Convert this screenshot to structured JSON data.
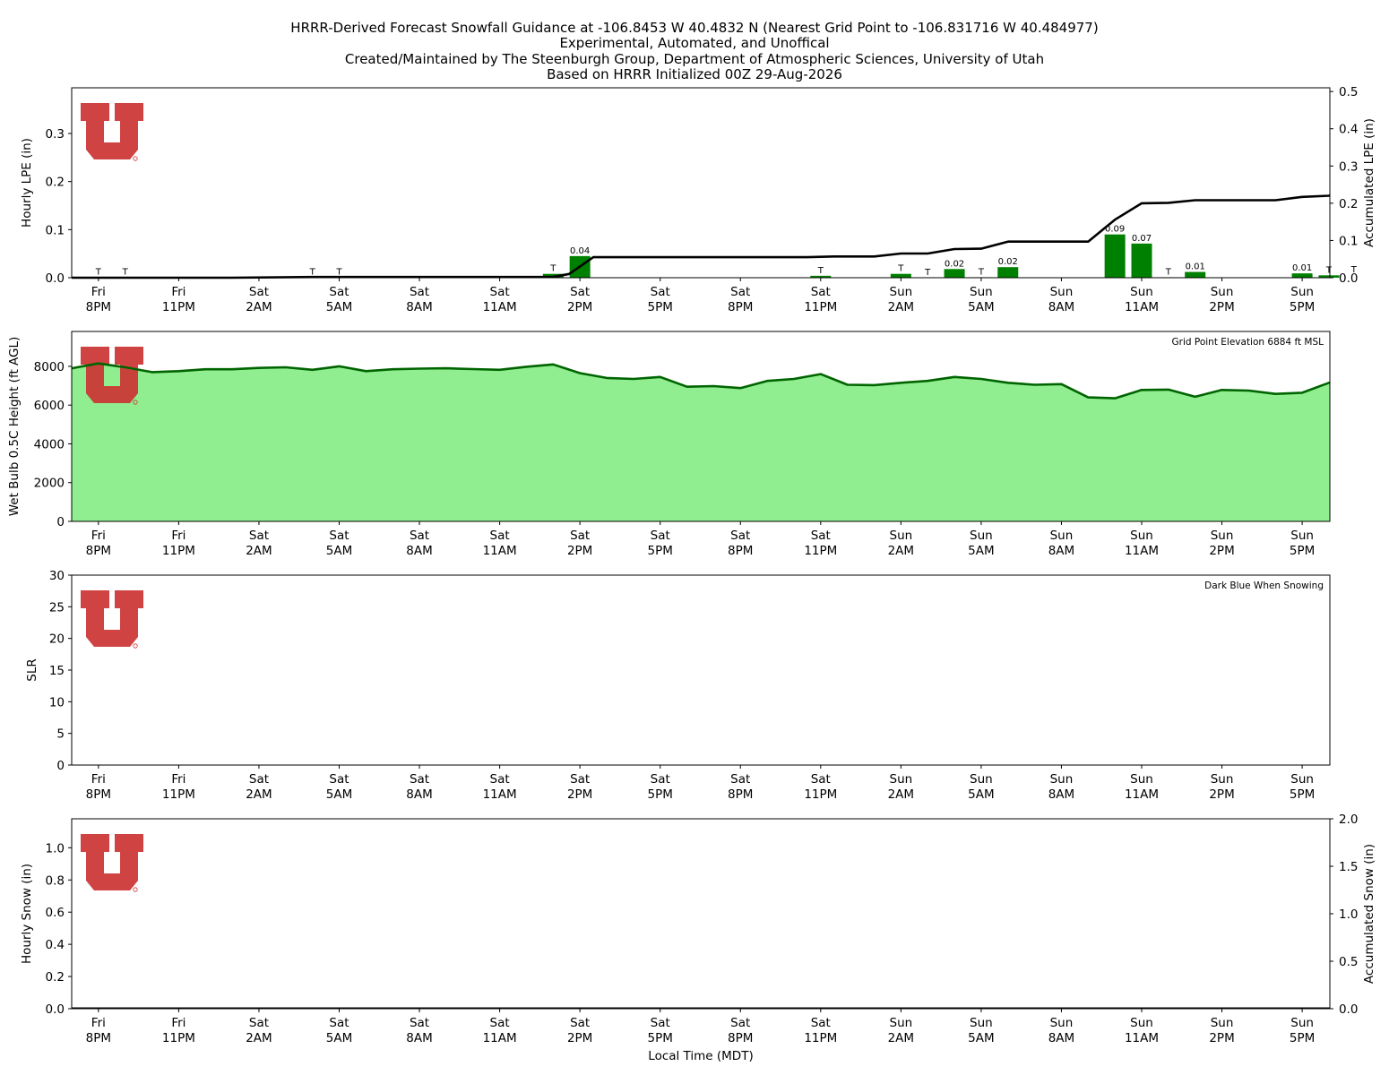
{
  "title_lines": [
    "HRRR-Derived Forecast Snowfall Guidance at -106.8453 W 40.4832 N (Nearest Grid Point to -106.831716 W 40.484977)",
    "Experimental, Automated, and Unoffical",
    "Created/Maintained by The Steenburgh Group, Department of Atmospheric Sciences, University of Utah",
    "Based on HRRR Initialized 00Z 29-Aug-2026"
  ],
  "time_ticks": [
    {
      "day": "Fri",
      "time": "8PM"
    },
    {
      "day": "Fri",
      "time": "11PM"
    },
    {
      "day": "Sat",
      "time": "2AM"
    },
    {
      "day": "Sat",
      "time": "5AM"
    },
    {
      "day": "Sat",
      "time": "8AM"
    },
    {
      "day": "Sat",
      "time": "11AM"
    },
    {
      "day": "Sat",
      "time": "2PM"
    },
    {
      "day": "Sat",
      "time": "5PM"
    },
    {
      "day": "Sat",
      "time": "8PM"
    },
    {
      "day": "Sat",
      "time": "11PM"
    },
    {
      "day": "Sun",
      "time": "2AM"
    },
    {
      "day": "Sun",
      "time": "5AM"
    },
    {
      "day": "Sun",
      "time": "8AM"
    },
    {
      "day": "Sun",
      "time": "11AM"
    },
    {
      "day": "Sun",
      "time": "2PM"
    },
    {
      "day": "Sun",
      "time": "5PM"
    }
  ],
  "xlabel": "Local Time (MDT)",
  "logo_color": "#cc3333",
  "chart_data": [
    {
      "type": "bar",
      "ylabel": "Hourly LPE (in)",
      "y2label": "Accumulated LPE (in)",
      "ylim": [
        0,
        0.395
      ],
      "y2lim": [
        0,
        0.51
      ],
      "yticks": [
        "0.0",
        "0.1",
        "0.2",
        "0.3"
      ],
      "y2ticks": [
        "0.0",
        "0.1",
        "0.2",
        "0.3",
        "0.4",
        "0.5"
      ],
      "x_hours": [
        0,
        1,
        2,
        3,
        4,
        5,
        6,
        7,
        8,
        9,
        10,
        11,
        12,
        13,
        14,
        15,
        16,
        17,
        18,
        19,
        20,
        21,
        22,
        23,
        24,
        25,
        26,
        27,
        28,
        29,
        30,
        31,
        32,
        33,
        34,
        35,
        36,
        37,
        38,
        39,
        40,
        41,
        42,
        43,
        44,
        45,
        46,
        47
      ],
      "hourly_lpe": [
        0,
        0.001,
        0.001,
        0,
        0,
        0,
        0,
        0,
        0,
        0.001,
        0.001,
        0,
        0,
        0,
        0,
        0,
        0,
        0,
        0.008,
        0.045,
        0,
        0,
        0,
        0,
        0,
        0,
        0,
        0,
        0.004,
        0,
        0,
        0.008,
        0,
        0.018,
        0.001,
        0.022,
        0,
        0,
        0,
        0.09,
        0.071,
        0.001,
        0.012,
        0,
        0,
        0,
        0.009,
        0.005
      ],
      "bar_labels": [
        "",
        "T",
        "T",
        "",
        "",
        "",
        "",
        "",
        "",
        "T",
        "T",
        "",
        "",
        "",
        "",
        "",
        "",
        "",
        "T",
        "0.04",
        "",
        "",
        "",
        "",
        "",
        "",
        "",
        "",
        "T",
        "",
        "",
        "T",
        "T",
        "0.02",
        "T",
        "0.02",
        "",
        "",
        "",
        "0.09",
        "0.07",
        "T",
        "0.01",
        "",
        "",
        "",
        "0.01",
        "T"
      ],
      "bar_color": "#008000",
      "trailing_label": "T",
      "accum_x": [
        0,
        3,
        6,
        9,
        12,
        15,
        18,
        18.6,
        19.5,
        20,
        21,
        24,
        27,
        27.5,
        28.5,
        30,
        31,
        32,
        33,
        34,
        35,
        36,
        37,
        38,
        39,
        40,
        41,
        42,
        43,
        44,
        45,
        46,
        47,
        47.4
      ],
      "accum_lpe": [
        0,
        0,
        0,
        0.002,
        0.002,
        0.002,
        0.002,
        0.01,
        0.055,
        0.055,
        0.055,
        0.055,
        0.055,
        0.055,
        0.057,
        0.057,
        0.065,
        0.065,
        0.077,
        0.078,
        0.097,
        0.097,
        0.097,
        0.097,
        0.156,
        0.2,
        0.201,
        0.208,
        0.208,
        0.208,
        0.208,
        0.217,
        0.22,
        0.221
      ],
      "line_color": "#000000"
    },
    {
      "type": "area",
      "ylabel": "Wet Bulb 0.5C Height (ft AGL)",
      "ylim": [
        0,
        9800
      ],
      "yticks": [
        "0",
        "2000",
        "4000",
        "6000",
        "8000"
      ],
      "annotation": "Grid Point Elevation 6884 ft MSL",
      "x_hours": [
        0,
        1,
        2,
        3,
        4,
        5,
        6,
        7,
        8,
        9,
        10,
        11,
        12,
        13,
        14,
        15,
        16,
        17,
        18,
        19,
        20,
        21,
        22,
        23,
        24,
        25,
        26,
        27,
        28,
        29,
        30,
        31,
        32,
        33,
        34,
        35,
        36,
        37,
        38,
        39,
        40,
        41,
        42,
        43,
        44,
        45,
        46,
        47
      ],
      "values": [
        7900,
        8150,
        7950,
        7700,
        7750,
        7850,
        7850,
        7920,
        7950,
        7820,
        8000,
        7750,
        7850,
        7880,
        7900,
        7860,
        7820,
        7980,
        8100,
        7650,
        7400,
        7350,
        7450,
        6950,
        6980,
        6880,
        7250,
        7350,
        7600,
        7050,
        7030,
        7150,
        7250,
        7450,
        7350,
        7150,
        7050,
        7080,
        6400,
        6350,
        6780,
        6800,
        6430,
        6780,
        6750,
        6580,
        6640,
        7150
      ],
      "fill_color": "#90ee90",
      "line_color": "#006400"
    },
    {
      "type": "bar",
      "ylabel": "SLR",
      "ylim": [
        0,
        30
      ],
      "yticks": [
        "0",
        "5",
        "10",
        "15",
        "20",
        "25",
        "30"
      ],
      "annotation": "Dark Blue When Snowing",
      "values": []
    },
    {
      "type": "bar",
      "ylabel": "Hourly Snow (in)",
      "y2label": "Accumulated Snow (in)",
      "ylim": [
        0,
        1.18
      ],
      "y2lim": [
        0,
        2.0
      ],
      "yticks": [
        "0.0",
        "0.2",
        "0.4",
        "0.6",
        "0.8",
        "1.0"
      ],
      "y2ticks": [
        "0.0",
        "0.5",
        "1.0",
        "1.5",
        "2.0"
      ],
      "hourly_snow": [],
      "accum_snow": []
    }
  ]
}
